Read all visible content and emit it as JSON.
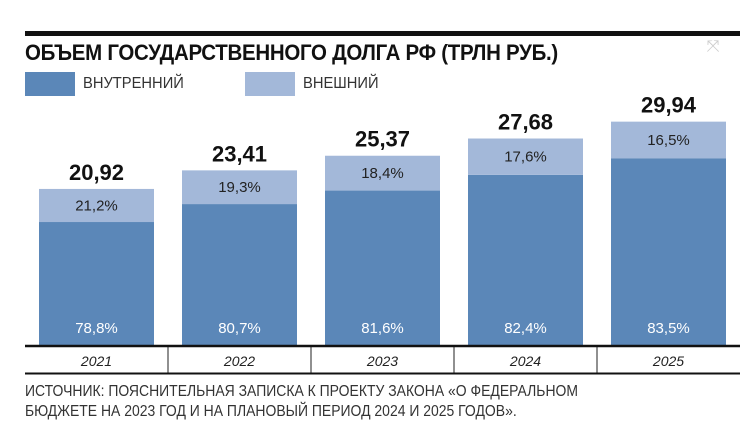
{
  "chart_data": {
    "type": "bar",
    "stacked": true,
    "title": "ОБЪЕМ ГОСУДАРСТВЕННОГО ДОЛГА РФ (ТРЛН РУБ.)",
    "categories": [
      "2021",
      "2022",
      "2023",
      "2024",
      "2025"
    ],
    "totals": [
      20.92,
      23.41,
      25.37,
      27.68,
      29.94
    ],
    "total_labels": [
      "20,92",
      "23,41",
      "25,37",
      "27,68",
      "29,94"
    ],
    "series": [
      {
        "name": "ВНУТРЕННИЙ",
        "color": "#5b87b8",
        "share_pct": [
          78.8,
          80.7,
          81.6,
          82.4,
          83.5
        ],
        "labels": [
          "78,8%",
          "80,7%",
          "81,6%",
          "82,4%",
          "83,5%"
        ]
      },
      {
        "name": "ВНЕШНИЙ",
        "color": "#a3b8d9",
        "share_pct": [
          21.2,
          19.3,
          18.4,
          17.6,
          16.5
        ],
        "labels": [
          "21,2%",
          "19,3%",
          "18,4%",
          "17,6%",
          "16,5%"
        ]
      }
    ],
    "legend_position": "top-left",
    "grid": false,
    "source": [
      "ИСТОЧНИК: ПОЯСНИТЕЛЬНАЯ ЗАПИСКА К ПРОЕКТУ ЗАКОНА «О ФЕДЕРАЛЬНОМ",
      "БЮДЖЕТЕ НА 2023 ГОД И НА ПЛАНОВЫЙ ПЕРИОД 2024 И 2025 ГОДОВ»."
    ]
  },
  "icons": {
    "corner": "expand-icon"
  }
}
